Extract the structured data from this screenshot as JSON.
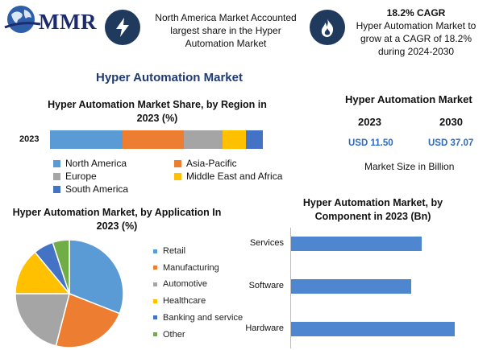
{
  "header": {
    "logo_text": "MMR",
    "info1": {
      "icon": "lightning-icon",
      "text": "North America Market Accounted largest share in the Hyper Automation Market"
    },
    "info2": {
      "icon": "flame-icon",
      "heading": "18.2% CAGR",
      "text": "Hyper Automation Market to grow at a CAGR of 18.2% during 2024-2030"
    }
  },
  "main_title": "Hyper Automation Market",
  "colors": {
    "navy": "#203a5e",
    "title_blue": "#203a73",
    "value_blue": "#2e6bc0",
    "bar_blue": "#4f86d0"
  },
  "chart_data": [
    {
      "type": "bar",
      "orientation": "horizontal-stacked",
      "title": "Hyper Automation Market Share, by Region in 2023 (%)",
      "categories": [
        "2023"
      ],
      "series": [
        {
          "name": "North America",
          "values": [
            34
          ],
          "color": "#5b9bd5"
        },
        {
          "name": "Asia-Pacific",
          "values": [
            29
          ],
          "color": "#ed7d31"
        },
        {
          "name": "Europe",
          "values": [
            18
          ],
          "color": "#a5a5a5"
        },
        {
          "name": "Middle East and Africa",
          "values": [
            11
          ],
          "color": "#ffc000"
        },
        {
          "name": "South America",
          "values": [
            8
          ],
          "color": "#4472c4"
        }
      ],
      "legend_position": "bottom"
    },
    {
      "type": "pie",
      "title": "Hyper Automation Market, by Application In 2023 (%)",
      "slices": [
        {
          "label": "Retail",
          "value": 31,
          "color": "#5b9bd5"
        },
        {
          "label": "Manufacturing",
          "value": 23,
          "color": "#ed7d31"
        },
        {
          "label": "Automotive",
          "value": 21,
          "color": "#a5a5a5"
        },
        {
          "label": "Healthcare",
          "value": 14,
          "color": "#ffc000"
        },
        {
          "label": "Banking and service",
          "value": 6,
          "color": "#4472c4"
        },
        {
          "label": "Other",
          "value": 5,
          "color": "#70ad47"
        }
      ],
      "legend_position": "right"
    },
    {
      "type": "bar",
      "orientation": "horizontal",
      "title": "Hyper Automation Market, by Component in 2023 (Bn)",
      "categories": [
        "Services",
        "Software",
        "Hardware"
      ],
      "values": [
        3.6,
        3.3,
        4.5
      ],
      "xlim": [
        0,
        5
      ]
    }
  ],
  "market_size": {
    "title": "Hyper Automation Market",
    "years": [
      "2023",
      "2030"
    ],
    "values": [
      "USD 11.50",
      "USD 37.07"
    ],
    "note": "Market Size in Billion"
  }
}
